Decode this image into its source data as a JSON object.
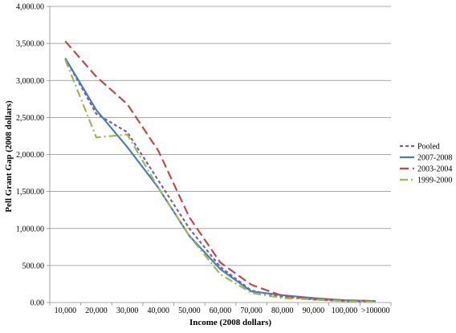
{
  "chart_data": {
    "type": "line",
    "xlabel": "Income (2008 dollars)",
    "ylabel": "Pell Grant Gap (2008 dollars)",
    "categories": [
      "10,000",
      "20,000",
      "30,000",
      "40,000",
      "50,000",
      "60,000",
      "70,000",
      "80,000",
      "90,000",
      "100,000",
      ">100000"
    ],
    "ylim": [
      0,
      4000
    ],
    "yticks": [
      "0.00",
      "500.00",
      "1,000.00",
      "1,500.00",
      "2,000.00",
      "2,500.00",
      "3,000.00",
      "3,500.00",
      "4,000.00"
    ],
    "grid": "horizontal",
    "legend_position": "right",
    "series": [
      {
        "name": "Pooled",
        "color": "#7b5ea7",
        "dash": "short-dash",
        "values": [
          3300,
          2550,
          2300,
          1650,
          1000,
          480,
          160,
          80,
          40,
          20,
          10
        ]
      },
      {
        "name": "2007-2008",
        "color": "#4a7ebb",
        "dash": "solid",
        "values": [
          3300,
          2600,
          2100,
          1550,
          900,
          450,
          150,
          100,
          60,
          30,
          20
        ]
      },
      {
        "name": "2003-2004",
        "color": "#be4b48",
        "dash": "long-dash",
        "values": [
          3530,
          3050,
          2680,
          2050,
          1150,
          540,
          240,
          90,
          50,
          30,
          20
        ]
      },
      {
        "name": "1999-2000",
        "color": "#98b954",
        "dash": "dash-dot",
        "values": [
          3280,
          2230,
          2270,
          1550,
          900,
          380,
          130,
          60,
          40,
          20,
          10
        ]
      }
    ]
  }
}
